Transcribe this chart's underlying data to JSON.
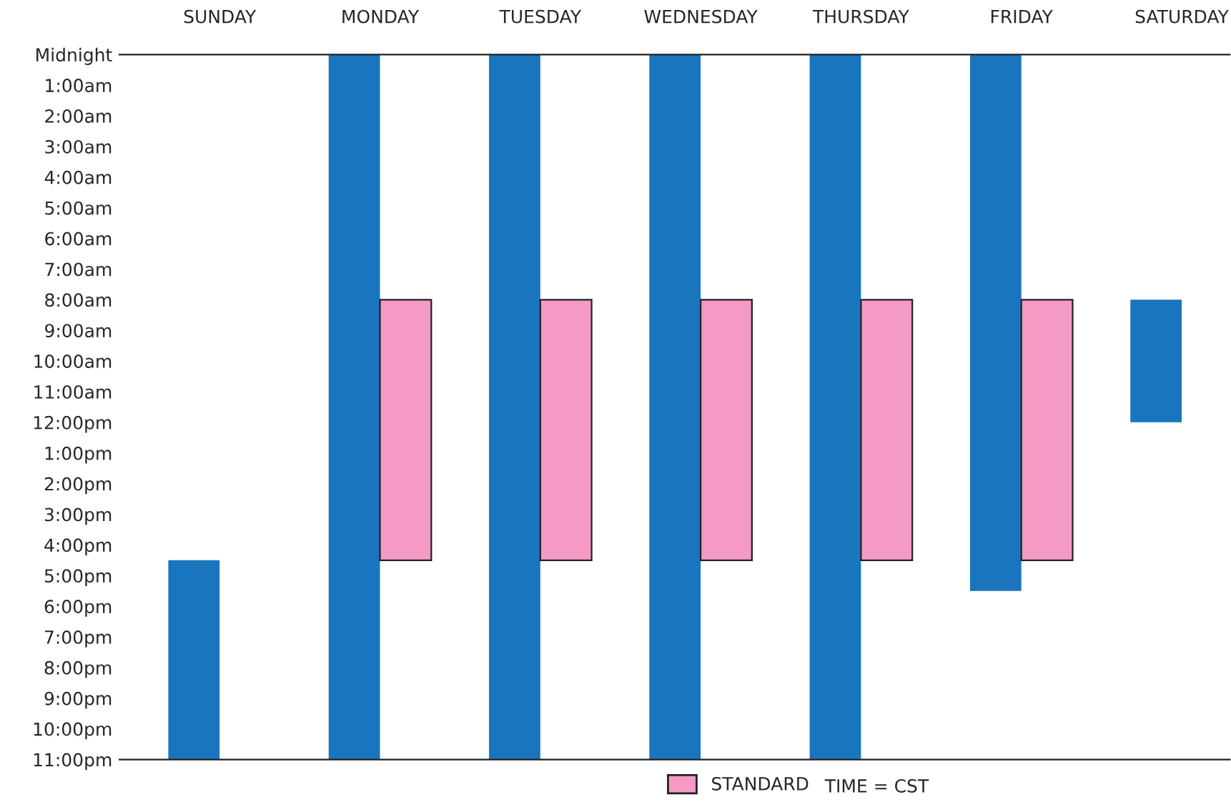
{
  "chart_data": {
    "type": "bar",
    "categories": [
      "SUNDAY",
      "MONDAY",
      "TUESDAY",
      "WEDNESDAY",
      "THURSDAY",
      "FRIDAY",
      "SATURDAY"
    ],
    "series": [
      {
        "color": "#1a75bf",
        "base": [
          16.5,
          0,
          0,
          0,
          0,
          0,
          8
        ],
        "values": [
          6.5,
          23,
          23,
          23,
          23,
          17.5,
          4
        ]
      },
      {
        "name": "STANDARD",
        "color": "#f49ac4",
        "base": [
          null,
          8,
          8,
          8,
          8,
          8,
          null
        ],
        "values": [
          null,
          8.5,
          8.5,
          8.5,
          8.5,
          8.5,
          null
        ]
      }
    ],
    "ylim": [
      23,
      0
    ],
    "yticks": [
      {
        "value": 0,
        "label": "Midnight"
      },
      {
        "value": 1,
        "label": "1:00am"
      },
      {
        "value": 2,
        "label": "2:00am"
      },
      {
        "value": 3,
        "label": "3:00am"
      },
      {
        "value": 4,
        "label": "4:00am"
      },
      {
        "value": 5,
        "label": "5:00am"
      },
      {
        "value": 6,
        "label": "6:00am"
      },
      {
        "value": 7,
        "label": "7:00am"
      },
      {
        "value": 8,
        "label": "8:00am"
      },
      {
        "value": 9,
        "label": "9:00am"
      },
      {
        "value": 10,
        "label": "10:00am"
      },
      {
        "value": 11,
        "label": "11:00am"
      },
      {
        "value": 12,
        "label": "12:00pm"
      },
      {
        "value": 13,
        "label": "1:00pm"
      },
      {
        "value": 14,
        "label": "2:00pm"
      },
      {
        "value": 15,
        "label": "3:00pm"
      },
      {
        "value": 16,
        "label": "4:00pm"
      },
      {
        "value": 17,
        "label": "5:00pm"
      },
      {
        "value": 18,
        "label": "6:00pm"
      },
      {
        "value": 19,
        "label": "7:00pm"
      },
      {
        "value": 20,
        "label": "8:00pm"
      },
      {
        "value": 21,
        "label": "9:00pm"
      },
      {
        "value": 22,
        "label": "10:00pm"
      },
      {
        "value": 23,
        "label": "11:00pm"
      }
    ],
    "annotations": [
      "TIME = CST"
    ],
    "legend": "bottom",
    "grid": false
  }
}
